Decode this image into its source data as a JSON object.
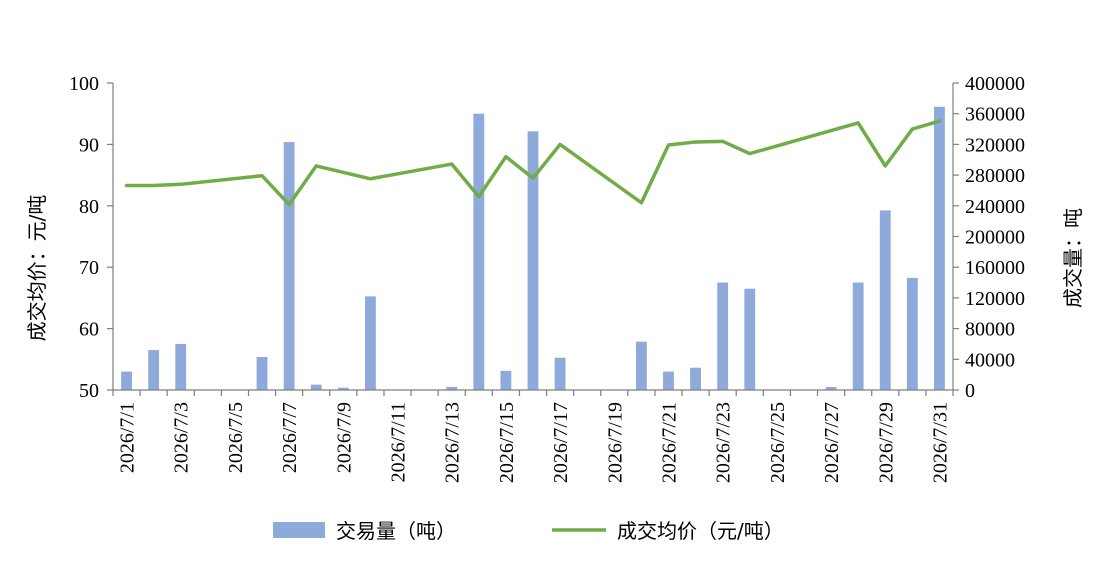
{
  "chart_data": {
    "type": "bar+line",
    "categories": [
      "2026/7/1",
      "2026/7/2",
      "2026/7/3",
      "2026/7/4",
      "2026/7/5",
      "2026/7/6",
      "2026/7/7",
      "2026/7/8",
      "2026/7/9",
      "2026/7/10",
      "2026/7/11",
      "2026/7/12",
      "2026/7/13",
      "2026/7/14",
      "2026/7/15",
      "2026/7/16",
      "2026/7/17",
      "2026/7/18",
      "2026/7/19",
      "2026/7/20",
      "2026/7/21",
      "2026/7/22",
      "2026/7/23",
      "2026/7/24",
      "2026/7/25",
      "2026/7/26",
      "2026/7/27",
      "2026/7/28",
      "2026/7/29",
      "2026/7/30",
      "2026/7/31"
    ],
    "tick_labels": [
      "2026/7/1",
      "2026/7/3",
      "2026/7/5",
      "2026/7/7",
      "2026/7/9",
      "2026/7/11",
      "2026/7/13",
      "2026/7/15",
      "2026/7/17",
      "2026/7/19",
      "2026/7/21",
      "2026/7/23",
      "2026/7/25",
      "2026/7/27",
      "2026/7/29",
      "2026/7/31"
    ],
    "series": [
      {
        "name": "交易量（吨）",
        "type": "bar",
        "axis": "right",
        "color": "#8eaadb",
        "values": [
          24000,
          52000,
          60000,
          null,
          null,
          43000,
          323000,
          7000,
          3000,
          122000,
          null,
          null,
          4000,
          360000,
          25000,
          337000,
          42000,
          null,
          null,
          63000,
          24000,
          29000,
          140000,
          132000,
          null,
          null,
          4000,
          140000,
          234000,
          146000,
          369000
        ]
      },
      {
        "name": "成交均价（元/吨）",
        "type": "line",
        "axis": "left",
        "color": "#70ad47",
        "values": [
          83.3,
          83.3,
          83.5,
          null,
          null,
          84.9,
          80.2,
          86.5,
          null,
          84.4,
          null,
          null,
          86.8,
          81.5,
          88.0,
          84.5,
          90.0,
          null,
          null,
          80.5,
          89.9,
          90.4,
          90.5,
          88.5,
          null,
          null,
          null,
          93.5,
          86.5,
          92.5,
          93.8
        ]
      }
    ],
    "y_left": {
      "label": "成交均价：元/吨",
      "ylim": [
        50,
        100
      ],
      "ticks": [
        50,
        60,
        70,
        80,
        90,
        100
      ]
    },
    "y_right": {
      "label": "成交量：吨",
      "ylim": [
        0,
        400000
      ],
      "ticks": [
        0,
        40000,
        80000,
        120000,
        160000,
        200000,
        240000,
        280000,
        320000,
        360000,
        400000
      ]
    },
    "legend_position": "bottom",
    "grid": false
  }
}
